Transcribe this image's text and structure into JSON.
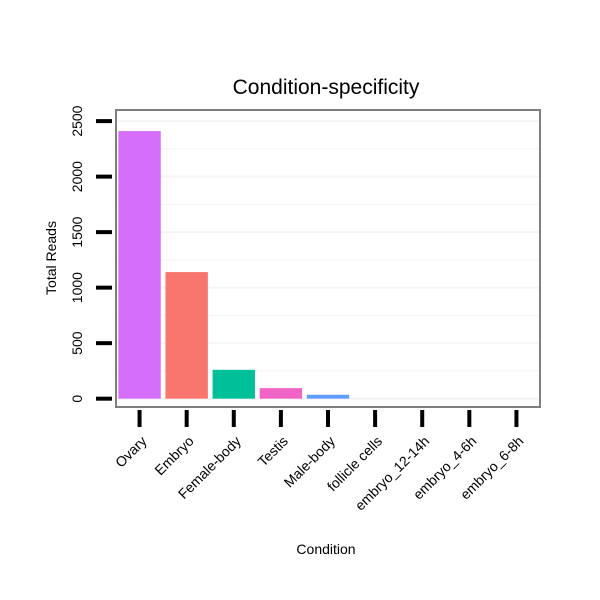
{
  "chart_data": {
    "type": "bar",
    "title": "Condition-specificity",
    "xlabel": "Condition",
    "ylabel": "Total Reads",
    "categories": [
      "Ovary",
      "Embryo",
      "Female-body",
      "Testis",
      "Male-body",
      "follicle cells",
      "embryo_12-14h",
      "embryo_4-6h",
      "embryo_6-8h"
    ],
    "values": [
      2410,
      1140,
      260,
      95,
      35,
      0,
      0,
      0,
      0
    ],
    "colors": [
      "#D56EF9",
      "#F8766D",
      "#00C09A",
      "#F064C8",
      "#619CFF",
      "#7CAE00",
      "#B79F00",
      "#00A9FF",
      "#00BFC4"
    ],
    "ylim": [
      -75,
      2600
    ],
    "yticks": [
      0,
      500,
      1000,
      1500,
      2000,
      2500
    ],
    "grid": true,
    "legend": "none"
  }
}
